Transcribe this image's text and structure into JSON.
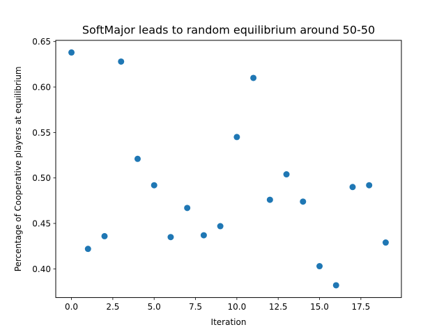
{
  "chart_data": {
    "type": "scatter",
    "title": "SoftMajor leads to random equilibrium around 50-50",
    "xlabel": "Iteration",
    "ylabel": "Percentage of Cooperative players at equilibrium",
    "xlim": [
      -0.95,
      19.95
    ],
    "ylim": [
      0.3685,
      0.6513
    ],
    "xticks": [
      0.0,
      2.5,
      5.0,
      7.5,
      10.0,
      12.5,
      15.0,
      17.5
    ],
    "xtick_labels": [
      "0.0",
      "2.5",
      "5.0",
      "7.5",
      "10.0",
      "12.5",
      "15.0",
      "17.5"
    ],
    "yticks": [
      0.4,
      0.45,
      0.5,
      0.55,
      0.6,
      0.65
    ],
    "ytick_labels": [
      "0.40",
      "0.45",
      "0.50",
      "0.55",
      "0.60",
      "0.65"
    ],
    "grid": false,
    "marker_color": "#1f77b4",
    "x": [
      0,
      1,
      2,
      3,
      4,
      5,
      6,
      7,
      8,
      9,
      10,
      11,
      12,
      13,
      14,
      15,
      16,
      17,
      18,
      19
    ],
    "y": [
      0.638,
      0.422,
      0.436,
      0.628,
      0.521,
      0.492,
      0.435,
      0.467,
      0.437,
      0.447,
      0.545,
      0.61,
      0.476,
      0.504,
      0.474,
      0.403,
      0.382,
      0.49,
      0.492,
      0.429
    ]
  }
}
